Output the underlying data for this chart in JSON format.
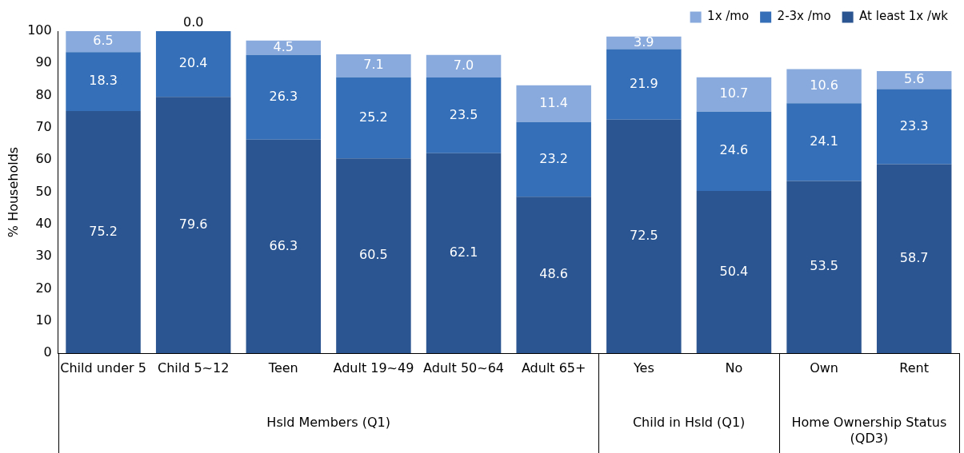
{
  "chart_data": {
    "type": "bar",
    "stacked": true,
    "ylabel": "% Households",
    "categories": [
      "Child under 5",
      "Child 5~12",
      "Teen",
      "Adult 19~49",
      "Adult 50~64",
      "Adult 65+",
      "Yes",
      "No",
      "Own",
      "Rent"
    ],
    "series": [
      {
        "name": "At least 1x /wk",
        "color": "#2a5590",
        "values": [
          75.2,
          79.6,
          66.3,
          60.5,
          62.1,
          48.6,
          72.5,
          50.4,
          53.5,
          58.7
        ],
        "value_labels": [
          "75.2",
          "79.6",
          "66.3",
          "60.5",
          "62.1",
          "48.6",
          "72.5",
          "50.4",
          "53.5",
          "58.7"
        ]
      },
      {
        "name": "2-3x /mo",
        "color": "#346fb7",
        "values": [
          18.3,
          20.4,
          26.3,
          25.2,
          23.5,
          23.2,
          21.9,
          24.6,
          24.1,
          23.3
        ],
        "value_labels": [
          "18.3",
          "20.4",
          "26.3",
          "25.2",
          "23.5",
          "23.2",
          "21.9",
          "24.6",
          "24.1",
          "23.3"
        ]
      },
      {
        "name": "1x /mo",
        "color": "#88aadc",
        "values": [
          6.5,
          0.0,
          4.5,
          7.1,
          7.0,
          11.4,
          3.9,
          10.7,
          10.6,
          5.6
        ],
        "value_labels": [
          "6.5",
          "0.0",
          "4.5",
          "7.1",
          "7.0",
          "11.4",
          "3.9",
          "10.7",
          "10.6",
          "5.6"
        ]
      }
    ],
    "ylim": [
      0,
      100
    ],
    "yticks": [
      0,
      10,
      20,
      30,
      40,
      50,
      60,
      70,
      80,
      90,
      100
    ],
    "grid": false,
    "legend": "top right",
    "annotations": [
      "Hsld Members (Q1)",
      "Child in Hsld (Q1)",
      "Home Ownership Status (QD3)"
    ]
  }
}
